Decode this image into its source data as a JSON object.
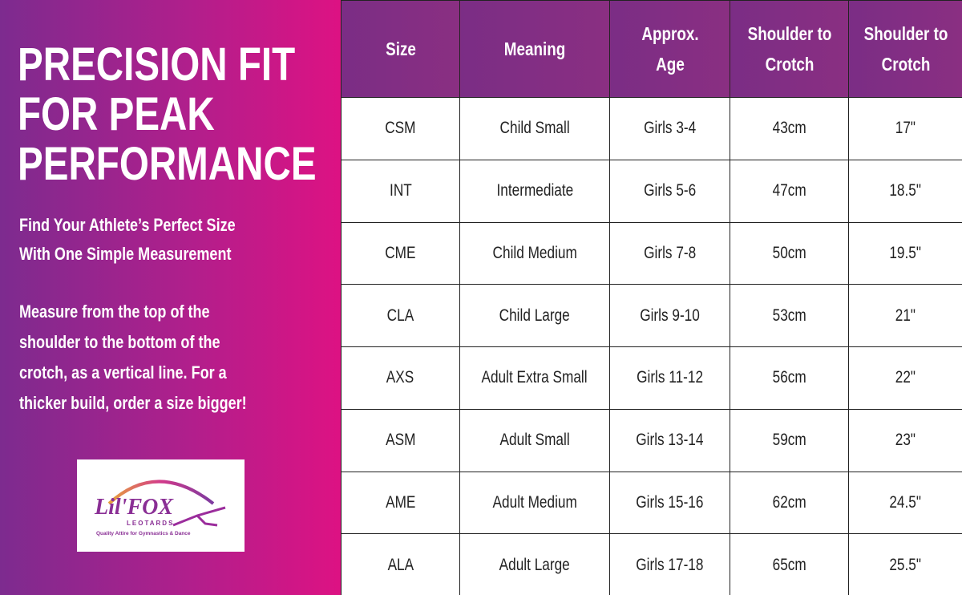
{
  "header": {
    "title_lines": [
      "PRECISION FIT",
      "FOR PEAK",
      "PERFORMANCE"
    ],
    "subtitle_lines": [
      "Find Your Athlete’s Perfect Size",
      "With  One Simple  Measurement"
    ],
    "body_lines": [
      "Measure from the top of the",
      "shoulder to the bottom of the",
      "crotch, as a vertical line. For a",
      "thicker  build, order a size bigger!"
    ]
  },
  "logo": {
    "name": "Lil'FOX",
    "sub": "LEOTARDS",
    "tagline": "Quality Attire for Gymnastics & Dance"
  },
  "table": {
    "columns": [
      "Size",
      "Meaning",
      "Approx. Age",
      "Shoulder to Crotch",
      "Shoulder to Crotch"
    ],
    "rows": [
      [
        "CSM",
        "Child Small",
        "Girls 3-4",
        "43cm",
        "17\""
      ],
      [
        "INT",
        "Intermediate",
        "Girls 5-6",
        "47cm",
        "18.5\""
      ],
      [
        "CME",
        "Child Medium",
        "Girls 7-8",
        "50cm",
        "19.5\""
      ],
      [
        "CLA",
        "Child Large",
        "Girls 9-10",
        "53cm",
        "21\""
      ],
      [
        "AXS",
        "Adult Extra Small",
        "Girls 11-12",
        "56cm",
        "22\""
      ],
      [
        "ASM",
        "Adult  Small",
        "Girls 13-14",
        "59cm",
        "23\""
      ],
      [
        "AME",
        "Adult Medium",
        "Girls 15-16",
        "62cm",
        "24.5\""
      ],
      [
        "ALA",
        "Adult Large",
        "Girls 17-18",
        "65cm",
        "25.5\""
      ]
    ]
  }
}
